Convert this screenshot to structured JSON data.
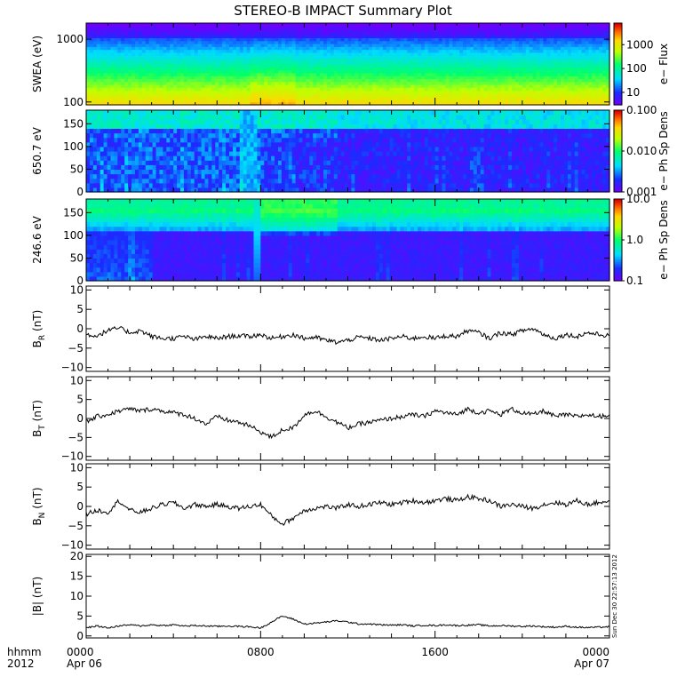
{
  "title": "STEREO-B IMPACT Summary Plot",
  "timestamp": "Sun Dec 30 22:57:13 2012",
  "time_axis": {
    "row1_label": "hhmm",
    "row2_label": "2012",
    "ticks": [
      {
        "hours": 0,
        "label": "0000",
        "date": "Apr 06"
      },
      {
        "hours": 8,
        "label": "0800",
        "date": ""
      },
      {
        "hours": 16,
        "label": "1600",
        "date": ""
      },
      {
        "hours": 24,
        "label": "0000",
        "date": "Apr 07"
      }
    ]
  },
  "chart_data": [
    {
      "type": "heatmap",
      "panel": "swea",
      "ylabel": "SWEA (eV)",
      "y_scale": "log",
      "ylim": [
        90,
        1800
      ],
      "y_ticks": [
        {
          "value": 100,
          "label": "100"
        },
        {
          "value": 1000,
          "label": "1000"
        }
      ],
      "colorbar": {
        "label": "e− Flux",
        "scale": "log",
        "range": [
          3,
          8000
        ],
        "ticks": [
          {
            "value": 10,
            "label": "10"
          },
          {
            "value": 100,
            "label": "100"
          },
          {
            "value": 1000,
            "label": "1000"
          }
        ]
      },
      "description_rows": [
        {
          "energy_eV": 100,
          "flux": 4000
        },
        {
          "energy_eV": 200,
          "flux": 1500
        },
        {
          "energy_eV": 400,
          "flux": 150
        },
        {
          "energy_eV": 800,
          "flux": 25
        },
        {
          "energy_eV": 1500,
          "flux": 5
        }
      ]
    },
    {
      "type": "heatmap",
      "panel": "pad650",
      "ylabel": "650.7 eV",
      "ylim": [
        0,
        180
      ],
      "y_ticks": [
        {
          "value": 0,
          "label": "0"
        },
        {
          "value": 50,
          "label": "50"
        },
        {
          "value": 100,
          "label": "100"
        },
        {
          "value": 150,
          "label": "150"
        }
      ],
      "colorbar": {
        "label": "e− Ph Sp Dens",
        "scale": "log",
        "range": [
          0.001,
          0.1
        ],
        "ticks": [
          {
            "value": 0.001,
            "label": "0.001"
          },
          {
            "value": 0.01,
            "label": "0.010"
          },
          {
            "value": 0.1,
            "label": "0.100"
          }
        ]
      }
    },
    {
      "type": "heatmap",
      "panel": "pad246",
      "ylabel": "246.6 eV",
      "ylim": [
        0,
        180
      ],
      "y_ticks": [
        {
          "value": 0,
          "label": "0"
        },
        {
          "value": 50,
          "label": "50"
        },
        {
          "value": 100,
          "label": "100"
        },
        {
          "value": 150,
          "label": "150"
        }
      ],
      "colorbar": {
        "label": "e− Ph Sp Dens",
        "scale": "log",
        "range": [
          0.1,
          10
        ],
        "ticks": [
          {
            "value": 0.1,
            "label": "0.1"
          },
          {
            "value": 1,
            "label": "1.0"
          },
          {
            "value": 10,
            "label": "10.0"
          }
        ]
      }
    },
    {
      "type": "line",
      "panel": "br",
      "ylabel": "B",
      "ylabel_sub": "R",
      "ylabel_unit": " (nT)",
      "ylim": [
        -11,
        11
      ],
      "y_ticks": [
        {
          "value": -10,
          "label": "−10"
        },
        {
          "value": -5,
          "label": "−5"
        },
        {
          "value": 0,
          "label": "0"
        },
        {
          "value": 5,
          "label": "5"
        },
        {
          "value": 10,
          "label": "10"
        }
      ],
      "x_hours": [
        0,
        0.5,
        1,
        1.5,
        2,
        2.5,
        3,
        3.5,
        4,
        4.5,
        5,
        5.5,
        6,
        6.5,
        7,
        7.5,
        8,
        8.5,
        9,
        9.5,
        10,
        10.5,
        11,
        11.5,
        12,
        12.5,
        13,
        13.5,
        14,
        14.5,
        15,
        15.5,
        16,
        16.5,
        17,
        17.5,
        18,
        18.5,
        19,
        19.5,
        20,
        20.5,
        21,
        21.5,
        22,
        22.5,
        23,
        23.5,
        24
      ],
      "y": [
        -1.5,
        -1.8,
        -0.5,
        0.2,
        -1.0,
        -0.5,
        -2.0,
        -2.5,
        -2.5,
        -2.0,
        -2.8,
        -2.0,
        -2.5,
        -2.0,
        -1.8,
        -2.0,
        -1.5,
        -2.5,
        -2.0,
        -1.5,
        -2.5,
        -2.2,
        -3.0,
        -3.5,
        -3.0,
        -2.2,
        -2.5,
        -3.0,
        -2.5,
        -2.0,
        -2.5,
        -2.0,
        -2.5,
        -1.8,
        -2.0,
        -0.5,
        -1.0,
        -2.5,
        -1.0,
        -1.5,
        -0.5,
        0.0,
        -1.5,
        -2.5,
        -1.5,
        -2.0,
        -1.0,
        -1.5,
        -1.8
      ]
    },
    {
      "type": "line",
      "panel": "bt",
      "ylabel": "B",
      "ylabel_sub": "T",
      "ylabel_unit": " (nT)",
      "ylim": [
        -11,
        11
      ],
      "y_ticks": [
        {
          "value": -10,
          "label": "−10"
        },
        {
          "value": -5,
          "label": "−5"
        },
        {
          "value": 0,
          "label": "0"
        },
        {
          "value": 5,
          "label": "5"
        },
        {
          "value": 10,
          "label": "10"
        }
      ],
      "x_hours": [
        0,
        0.5,
        1,
        1.5,
        2,
        2.5,
        3,
        3.5,
        4,
        4.5,
        5,
        5.5,
        6,
        6.5,
        7,
        7.5,
        8,
        8.5,
        9,
        9.5,
        10,
        10.5,
        11,
        11.5,
        12,
        12.5,
        13,
        13.5,
        14,
        14.5,
        15,
        15.5,
        16,
        16.5,
        17,
        17.5,
        18,
        18.5,
        19,
        19.5,
        20,
        20.5,
        21,
        21.5,
        22,
        22.5,
        23,
        23.5,
        24
      ],
      "y": [
        -1.0,
        0.5,
        1.0,
        2.0,
        2.5,
        2.0,
        2.5,
        2.0,
        1.5,
        1.0,
        0.0,
        -1.5,
        0.5,
        -0.5,
        -1.0,
        -2.0,
        -3.5,
        -5.0,
        -3.0,
        -2.5,
        1.0,
        2.0,
        0.5,
        -1.0,
        -2.5,
        -1.5,
        -1.0,
        -0.5,
        0.0,
        0.5,
        1.0,
        0.5,
        2.0,
        1.5,
        1.0,
        2.5,
        1.5,
        2.0,
        1.0,
        2.5,
        1.5,
        1.0,
        2.0,
        0.5,
        1.0,
        0.5,
        1.0,
        0.5,
        1.0
      ]
    },
    {
      "type": "line",
      "panel": "bn",
      "ylabel": "B",
      "ylabel_sub": "N",
      "ylabel_unit": " (nT)",
      "ylim": [
        -11,
        11
      ],
      "y_ticks": [
        {
          "value": -10,
          "label": "−10"
        },
        {
          "value": -5,
          "label": "−5"
        },
        {
          "value": 0,
          "label": "0"
        },
        {
          "value": 5,
          "label": "5"
        },
        {
          "value": 10,
          "label": "10"
        }
      ],
      "x_hours": [
        0,
        0.5,
        1,
        1.5,
        2,
        2.5,
        3,
        3.5,
        4,
        4.5,
        5,
        5.5,
        6,
        6.5,
        7,
        7.5,
        8,
        8.5,
        9,
        9.5,
        10,
        10.5,
        11,
        11.5,
        12,
        12.5,
        13,
        13.5,
        14,
        14.5,
        15,
        15.5,
        16,
        16.5,
        17,
        17.5,
        18,
        18.5,
        19,
        19.5,
        20,
        20.5,
        21,
        21.5,
        22,
        22.5,
        23,
        23.5,
        24
      ],
      "y": [
        -2.0,
        -1.0,
        -1.5,
        1.5,
        -1.0,
        -1.5,
        -0.5,
        0.5,
        1.0,
        -0.5,
        0.5,
        0.0,
        0.5,
        0.0,
        -0.5,
        0.0,
        0.5,
        -2.5,
        -4.5,
        -3.0,
        -1.0,
        -0.5,
        0.0,
        -0.5,
        0.5,
        0.0,
        0.5,
        1.0,
        0.5,
        1.0,
        1.5,
        1.0,
        1.5,
        2.0,
        1.5,
        2.5,
        2.0,
        1.5,
        0.0,
        0.5,
        0.0,
        -0.5,
        0.5,
        1.0,
        0.5,
        1.5,
        0.5,
        1.0,
        1.5
      ]
    },
    {
      "type": "line",
      "panel": "bmag",
      "ylabel": "|B| (nT)",
      "ylim": [
        -0.5,
        20.5
      ],
      "y_ticks": [
        {
          "value": 0,
          "label": "0"
        },
        {
          "value": 5,
          "label": "5"
        },
        {
          "value": 10,
          "label": "10"
        },
        {
          "value": 15,
          "label": "15"
        },
        {
          "value": 20,
          "label": "20"
        }
      ],
      "x_hours": [
        0,
        0.5,
        1,
        1.5,
        2,
        2.5,
        3,
        3.5,
        4,
        4.5,
        5,
        5.5,
        6,
        6.5,
        7,
        7.5,
        8,
        8.5,
        9,
        9.5,
        10,
        10.5,
        11,
        11.5,
        12,
        12.5,
        13,
        13.5,
        14,
        14.5,
        15,
        15.5,
        16,
        16.5,
        17,
        17.5,
        18,
        18.5,
        19,
        19.5,
        20,
        20.5,
        21,
        21.5,
        22,
        22.5,
        23,
        23.5,
        24
      ],
      "y": [
        2.0,
        2.5,
        2.0,
        2.5,
        2.8,
        2.5,
        2.8,
        2.6,
        2.8,
        2.5,
        2.6,
        2.5,
        2.4,
        2.5,
        2.4,
        2.3,
        2.0,
        3.5,
        5.0,
        4.2,
        3.0,
        3.2,
        3.5,
        3.8,
        3.5,
        3.0,
        3.0,
        2.8,
        2.7,
        2.8,
        2.5,
        2.7,
        2.6,
        2.8,
        2.6,
        2.7,
        2.8,
        2.5,
        2.6,
        2.5,
        2.4,
        2.5,
        2.3,
        2.2,
        2.4,
        2.2,
        2.1,
        2.2,
        2.3
      ]
    }
  ]
}
